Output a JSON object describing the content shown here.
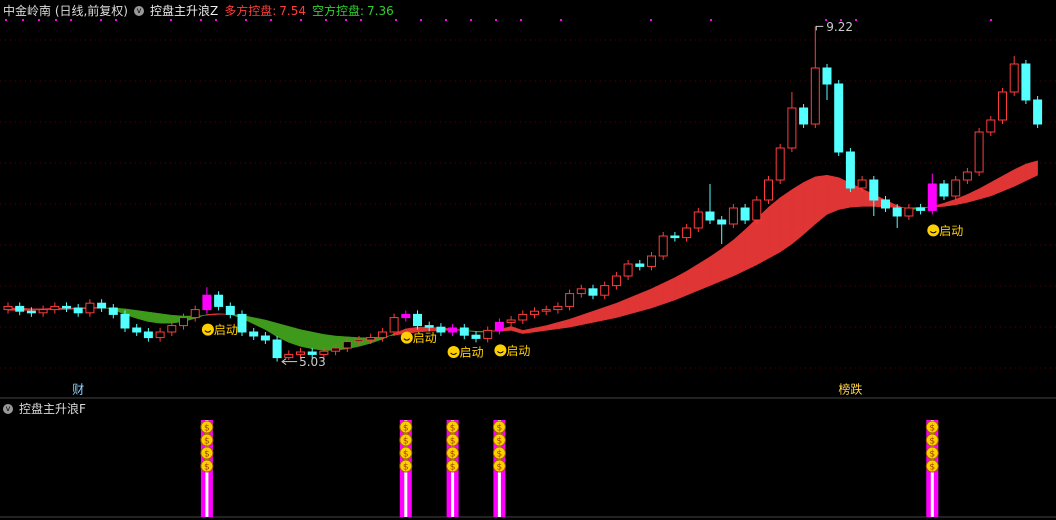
{
  "header": {
    "title": "中金岭南 (日线,前复权)",
    "indicator": "控盘主升浪Z",
    "bull_label": "多方控盘:",
    "bear_label": "空方控盘:"
  },
  "lower_panel": {
    "title": "控盘主升浪F",
    "signal_icon": "$"
  },
  "chart_data": {
    "type": "candlestick",
    "ylim": [
      4.8,
      9.3
    ],
    "up_color": "#ff3c3c",
    "down_color": "#54ffff",
    "signal_color": "#ff00ff",
    "band_up_color": "#e03535",
    "band_down_color": "#3f9a1c",
    "open": [
      5.68,
      5.72,
      5.66,
      5.64,
      5.68,
      5.72,
      5.7,
      5.64,
      5.76,
      5.7,
      5.62,
      5.45,
      5.4,
      5.33,
      5.4,
      5.48,
      5.58,
      5.68,
      5.86,
      5.72,
      5.62,
      5.4,
      5.35,
      5.3,
      5.08,
      5.12,
      5.15,
      5.12,
      5.16,
      5.2,
      5.28,
      5.3,
      5.33,
      5.4,
      5.58,
      5.62,
      5.48,
      5.46,
      5.4,
      5.45,
      5.36,
      5.32,
      5.42,
      5.52,
      5.55,
      5.62,
      5.66,
      5.68,
      5.72,
      5.88,
      5.94,
      5.86,
      5.98,
      6.1,
      6.25,
      6.22,
      6.35,
      6.6,
      6.58,
      6.7,
      6.9,
      6.8,
      6.75,
      6.95,
      6.8,
      7.05,
      7.3,
      7.7,
      8.2,
      8.0,
      8.7,
      8.5,
      7.65,
      7.2,
      7.3,
      7.05,
      6.95,
      6.85,
      6.95,
      6.92,
      7.25,
      7.1,
      7.3,
      7.4,
      7.9,
      8.05,
      8.4,
      8.75,
      8.3
    ],
    "high": [
      5.77,
      5.77,
      5.71,
      5.73,
      5.77,
      5.77,
      5.75,
      5.81,
      5.81,
      5.75,
      5.67,
      5.5,
      5.45,
      5.45,
      5.53,
      5.63,
      5.73,
      5.96,
      5.91,
      5.77,
      5.67,
      5.45,
      5.4,
      5.35,
      5.17,
      5.2,
      5.2,
      5.21,
      5.25,
      5.33,
      5.35,
      5.38,
      5.45,
      5.63,
      5.67,
      5.67,
      5.53,
      5.51,
      5.5,
      5.5,
      5.41,
      5.47,
      5.57,
      5.6,
      5.67,
      5.71,
      5.73,
      5.77,
      5.93,
      5.99,
      5.99,
      6.03,
      6.15,
      6.3,
      6.3,
      6.4,
      6.65,
      6.65,
      6.75,
      6.95,
      7.25,
      6.85,
      7.0,
      7.0,
      7.1,
      7.35,
      7.75,
      8.4,
      8.25,
      9.22,
      8.75,
      8.55,
      7.7,
      7.35,
      7.35,
      7.1,
      7.0,
      7.0,
      7.0,
      7.38,
      7.3,
      7.35,
      7.45,
      7.95,
      8.1,
      8.45,
      8.85,
      8.8,
      8.35
    ],
    "low": [
      5.63,
      5.61,
      5.59,
      5.59,
      5.63,
      5.65,
      5.59,
      5.59,
      5.65,
      5.57,
      5.4,
      5.35,
      5.28,
      5.28,
      5.35,
      5.43,
      5.53,
      5.63,
      5.67,
      5.57,
      5.35,
      5.3,
      5.25,
      5.03,
      5.05,
      5.07,
      5.07,
      5.07,
      5.11,
      5.15,
      5.23,
      5.25,
      5.28,
      5.35,
      5.53,
      5.43,
      5.41,
      5.35,
      5.35,
      5.31,
      5.27,
      5.27,
      5.37,
      5.47,
      5.5,
      5.57,
      5.61,
      5.63,
      5.67,
      5.83,
      5.81,
      5.81,
      5.93,
      6.05,
      6.17,
      6.17,
      6.3,
      6.53,
      6.53,
      6.65,
      6.75,
      6.5,
      6.7,
      6.75,
      6.75,
      7.0,
      7.25,
      7.65,
      7.95,
      7.95,
      8.3,
      7.6,
      7.15,
      7.15,
      6.85,
      6.9,
      6.7,
      6.8,
      6.87,
      6.87,
      7.05,
      7.05,
      7.25,
      7.35,
      7.85,
      8.0,
      8.35,
      8.25,
      7.95
    ],
    "close": [
      5.72,
      5.66,
      5.64,
      5.68,
      5.72,
      5.7,
      5.64,
      5.76,
      5.7,
      5.62,
      5.45,
      5.4,
      5.33,
      5.4,
      5.48,
      5.58,
      5.68,
      5.86,
      5.72,
      5.62,
      5.4,
      5.35,
      5.3,
      5.08,
      5.12,
      5.15,
      5.12,
      5.16,
      5.2,
      5.28,
      5.3,
      5.33,
      5.4,
      5.58,
      5.62,
      5.48,
      5.46,
      5.4,
      5.45,
      5.36,
      5.32,
      5.42,
      5.52,
      5.55,
      5.62,
      5.66,
      5.68,
      5.72,
      5.88,
      5.94,
      5.86,
      5.98,
      6.1,
      6.25,
      6.22,
      6.35,
      6.6,
      6.58,
      6.7,
      6.9,
      6.8,
      6.75,
      6.95,
      6.8,
      7.05,
      7.3,
      7.7,
      8.2,
      8.0,
      8.7,
      8.5,
      7.65,
      7.2,
      7.3,
      7.05,
      6.95,
      6.85,
      6.95,
      6.92,
      7.25,
      7.1,
      7.3,
      7.4,
      7.9,
      8.05,
      8.4,
      8.75,
      8.3,
      8.0
    ],
    "fast": [
      5.7,
      5.7,
      5.69,
      5.69,
      5.7,
      5.7,
      5.7,
      5.71,
      5.71,
      5.68,
      5.62,
      5.57,
      5.53,
      5.51,
      5.51,
      5.53,
      5.57,
      5.62,
      5.63,
      5.62,
      5.57,
      5.5,
      5.43,
      5.34,
      5.27,
      5.22,
      5.19,
      5.17,
      5.17,
      5.19,
      5.22,
      5.26,
      5.31,
      5.38,
      5.44,
      5.46,
      5.46,
      5.45,
      5.44,
      5.42,
      5.4,
      5.4,
      5.43,
      5.47,
      5.42,
      5.45,
      5.48,
      5.52,
      5.56,
      5.61,
      5.66,
      5.71,
      5.76,
      5.82,
      5.88,
      5.94,
      6.01,
      6.08,
      6.16,
      6.25,
      6.34,
      6.44,
      6.55,
      6.68,
      6.82,
      6.96,
      7.08,
      7.18,
      7.27,
      7.34,
      7.36,
      7.33,
      7.26,
      7.19,
      7.12,
      7.05,
      6.98,
      6.93,
      6.94,
      6.97,
      7.01,
      7.06,
      7.12,
      7.19,
      7.27,
      7.35,
      7.43,
      7.5,
      7.54
    ],
    "slow": [
      5.67,
      5.67,
      5.67,
      5.68,
      5.68,
      5.68,
      5.69,
      5.69,
      5.7,
      5.7,
      5.69,
      5.67,
      5.65,
      5.63,
      5.61,
      5.6,
      5.6,
      5.61,
      5.62,
      5.62,
      5.61,
      5.58,
      5.55,
      5.51,
      5.47,
      5.43,
      5.4,
      5.37,
      5.35,
      5.34,
      5.33,
      5.33,
      5.34,
      5.36,
      5.38,
      5.4,
      5.41,
      5.42,
      5.42,
      5.42,
      5.41,
      5.41,
      5.41,
      5.42,
      5.38,
      5.4,
      5.42,
      5.44,
      5.46,
      5.49,
      5.52,
      5.55,
      5.58,
      5.62,
      5.66,
      5.7,
      5.75,
      5.8,
      5.86,
      5.92,
      5.98,
      6.04,
      6.1,
      6.17,
      6.24,
      6.32,
      6.4,
      6.5,
      6.62,
      6.75,
      6.87,
      6.93,
      6.96,
      6.97,
      6.97,
      6.96,
      6.96,
      6.95,
      6.96,
      6.96,
      6.97,
      6.99,
      7.02,
      7.06,
      7.1,
      7.16,
      7.22,
      7.29,
      7.36
    ],
    "signals": [
      {
        "index": 17,
        "label": "启动"
      },
      {
        "index": 34,
        "label": "启动"
      },
      {
        "index": 38,
        "label": "启动"
      },
      {
        "index": 42,
        "label": "启动"
      },
      {
        "index": 79,
        "label": "启动"
      }
    ],
    "events": [
      {
        "index": 6,
        "label": "财",
        "color": "#8fd4ff"
      },
      {
        "index": 72,
        "label": "榜跌",
        "color": "#ffd24a"
      }
    ]
  }
}
